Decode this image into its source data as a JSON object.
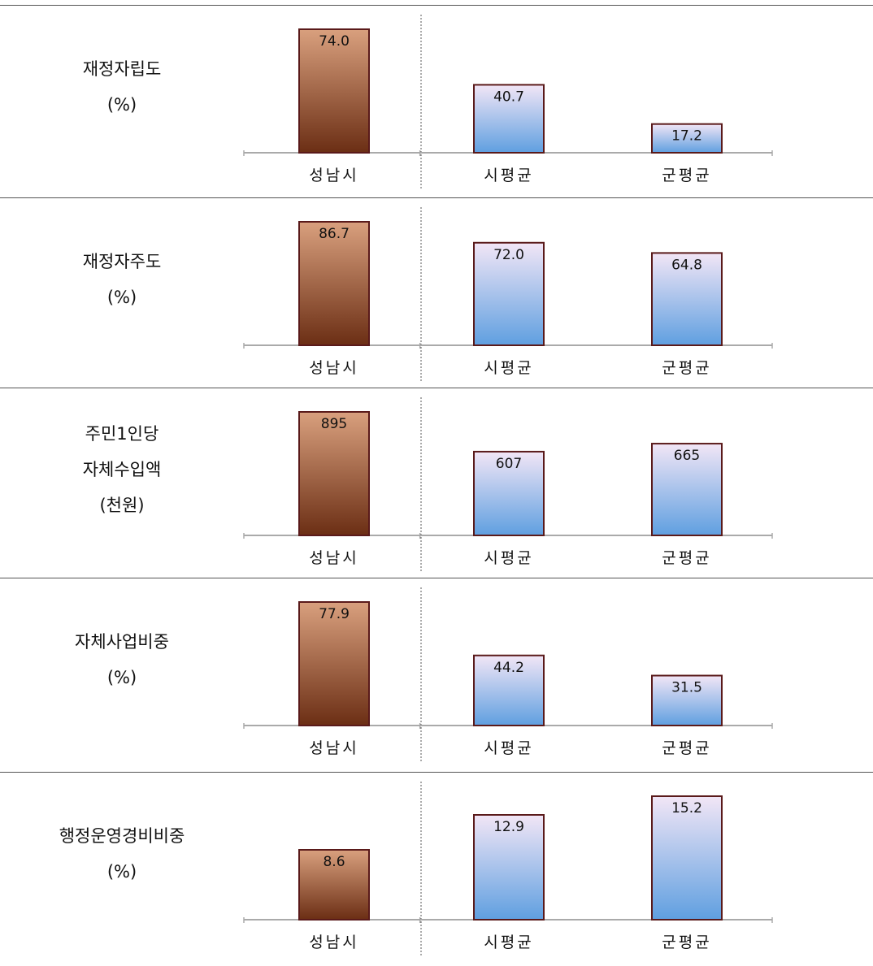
{
  "colors": {
    "seongnam_top": "#d9a07e",
    "seongnam_bottom": "#6b2e14",
    "avg_top": "#f2e6f6",
    "avg_bottom": "#5f9fe0",
    "bar_border": "#5a1a1a",
    "axis": "#aaaaaa",
    "divider": "#555555"
  },
  "chart_data": [
    {
      "type": "bar",
      "label_lines": [
        "재정자립도",
        "(%)"
      ],
      "categories": [
        "성남시",
        "시평균",
        "군평균"
      ],
      "values": [
        74.0,
        40.7,
        17.2
      ],
      "value_labels": [
        "74.0",
        "40.7",
        "17.2"
      ]
    },
    {
      "type": "bar",
      "label_lines": [
        "재정자주도",
        "(%)"
      ],
      "categories": [
        "성남시",
        "시평균",
        "군평균"
      ],
      "values": [
        86.7,
        72.0,
        64.8
      ],
      "value_labels": [
        "86.7",
        "72.0",
        "64.8"
      ]
    },
    {
      "type": "bar",
      "label_lines": [
        "주민1인당",
        "자체수입액",
        "(천원)"
      ],
      "categories": [
        "성남시",
        "시평균",
        "군평균"
      ],
      "values": [
        895,
        607,
        665
      ],
      "value_labels": [
        "895",
        "607",
        "665"
      ]
    },
    {
      "type": "bar",
      "label_lines": [
        "자체사업비중",
        "(%)"
      ],
      "categories": [
        "성남시",
        "시평균",
        "군평균"
      ],
      "values": [
        77.9,
        44.2,
        31.5
      ],
      "value_labels": [
        "77.9",
        "44.2",
        "31.5"
      ]
    },
    {
      "type": "bar",
      "label_lines": [
        "행정운영경비비중",
        "(%)"
      ],
      "categories": [
        "성남시",
        "시평균",
        "군평균"
      ],
      "values": [
        8.6,
        12.9,
        15.2
      ],
      "value_labels": [
        "8.6",
        "12.9",
        "15.2"
      ]
    }
  ]
}
